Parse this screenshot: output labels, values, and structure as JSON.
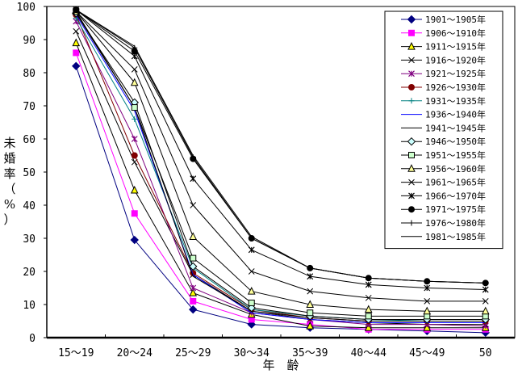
{
  "chart_data": {
    "type": "line",
    "title": "",
    "xlabel": "年　齢",
    "ylabel": "未婚率（%）",
    "ylim": [
      0,
      100
    ],
    "yticks": [
      "0",
      "10",
      "20",
      "30",
      "40",
      "50",
      "60",
      "70",
      "80",
      "90",
      "100"
    ],
    "categories": [
      "15～19",
      "20～24",
      "25～29",
      "30～34",
      "35～39",
      "40～44",
      "45～49",
      "50"
    ],
    "legend_position": "top-right",
    "grid": false,
    "series": [
      {
        "name": "1901～1905年",
        "color": "#000080",
        "marker": "diamond",
        "fill": "#000080",
        "values": [
          82,
          29.5,
          8.5,
          4,
          3,
          2.5,
          2,
          1.5
        ]
      },
      {
        "name": "1906～1910年",
        "color": "#ff00ff",
        "marker": "square",
        "fill": "#ff00ff",
        "values": [
          86,
          37.5,
          11,
          5.5,
          4,
          2.5,
          2.5,
          2.5
        ]
      },
      {
        "name": "1911～1915年",
        "color": "#000000",
        "marker": "triangle",
        "fill": "#ffff00",
        "values": [
          89,
          44.5,
          13.5,
          7,
          3.5,
          3,
          3,
          3
        ]
      },
      {
        "name": "1916～1920年",
        "color": "#000000",
        "marker": "x",
        "fill": "none",
        "values": [
          92.5,
          53,
          19,
          8,
          5.5,
          4.5,
          4,
          4
        ]
      },
      {
        "name": "1921～1925年",
        "color": "#800080",
        "marker": "star",
        "fill": "none",
        "values": [
          95.5,
          60,
          15,
          7.5,
          5.5,
          4,
          4,
          3.5
        ]
      },
      {
        "name": "1926～1930年",
        "color": "#800000",
        "marker": "circle",
        "fill": "#800000",
        "values": [
          97.5,
          55,
          19.5,
          8.5,
          6,
          5,
          5,
          5
        ]
      },
      {
        "name": "1931～1935年",
        "color": "#008080",
        "marker": "plus",
        "fill": "none",
        "values": [
          96.5,
          66,
          21,
          8.5,
          6.5,
          5.5,
          5,
          5
        ]
      },
      {
        "name": "1936～1940年",
        "color": "#0000ff",
        "marker": "none",
        "fill": "none",
        "values": [
          97.5,
          68.5,
          19,
          7.5,
          5.5,
          4.5,
          4.5,
          4.5
        ]
      },
      {
        "name": "1941～1945年",
        "color": "#000000",
        "marker": "none",
        "fill": "none",
        "values": [
          98,
          69.5,
          18.5,
          8,
          6,
          5,
          5,
          5
        ]
      },
      {
        "name": "1946～1950年",
        "color": "#000000",
        "marker": "diamond",
        "fill": "#ccffff",
        "values": [
          98,
          71,
          21.5,
          9,
          6.5,
          5.5,
          5.5,
          5.5
        ]
      },
      {
        "name": "1951～1955年",
        "color": "#000000",
        "marker": "square",
        "fill": "#ccffcc",
        "values": [
          98.5,
          69.5,
          24,
          10.5,
          7.5,
          6.5,
          6.5,
          6.5
        ]
      },
      {
        "name": "1956～1960年",
        "color": "#000000",
        "marker": "triangle",
        "fill": "#ffff99",
        "values": [
          98.5,
          77,
          30.5,
          14,
          10,
          8.5,
          8,
          8
        ]
      },
      {
        "name": "1961～1965年",
        "color": "#000000",
        "marker": "x",
        "fill": "none",
        "values": [
          98.5,
          81,
          40,
          20,
          14,
          12,
          11,
          11
        ]
      },
      {
        "name": "1966～1970年",
        "color": "#000000",
        "marker": "star",
        "fill": "none",
        "values": [
          99,
          85,
          48,
          26.5,
          18.5,
          16,
          15,
          14.5
        ]
      },
      {
        "name": "1971～1975年",
        "color": "#000000",
        "marker": "circle",
        "fill": "#000000",
        "values": [
          99,
          86.5,
          54,
          30,
          21,
          18,
          17,
          16.5
        ]
      },
      {
        "name": "1976～1980年",
        "color": "#000000",
        "marker": "plus",
        "fill": "none",
        "values": [
          99,
          87.5,
          54.5,
          30,
          21,
          18,
          17,
          16.5
        ]
      },
      {
        "name": "1981～1985年",
        "color": "#000000",
        "marker": "none",
        "fill": "none",
        "values": [
          99,
          88,
          55,
          30.5,
          21,
          18,
          17,
          16.5
        ]
      }
    ]
  }
}
